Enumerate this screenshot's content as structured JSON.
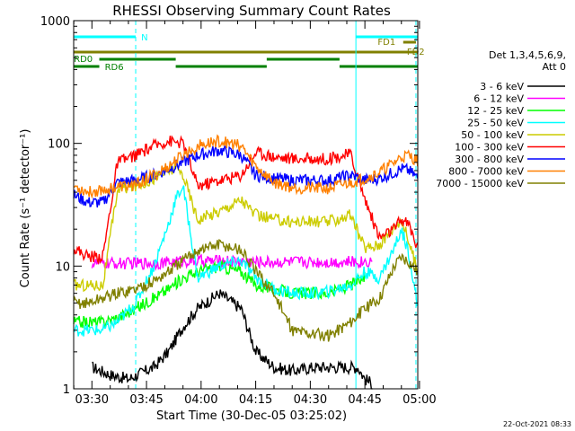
{
  "chart_data": {
    "type": "line",
    "title": "RHESSI Observing Summary Count Rates",
    "xlabel": "Start Time (30-Dec-05 03:25:02)",
    "ylabel": "Count Rate (s⁻¹ detector⁻¹)",
    "yscale": "log",
    "ylim": [
      1,
      1000
    ],
    "xlim_minutes": [
      -0.04,
      94.5
    ],
    "x_ticks": [
      {
        "label": "03:30",
        "minute": 4.97
      },
      {
        "label": "03:45",
        "minute": 19.97
      },
      {
        "label": "04:00",
        "minute": 34.97
      },
      {
        "label": "04:15",
        "minute": 49.97
      },
      {
        "label": "04:30",
        "minute": 64.97
      },
      {
        "label": "04:45",
        "minute": 79.97
      },
      {
        "label": "05:00",
        "minute": 94.97
      }
    ],
    "y_ticks": [
      {
        "label": "1",
        "value": 1
      },
      {
        "label": "10",
        "value": 10
      },
      {
        "label": "100",
        "value": 100
      },
      {
        "label": "1000",
        "value": 1000
      }
    ],
    "legend_header": [
      "Det 1,3,4,5,6,9,",
      "Att 0"
    ],
    "series": [
      {
        "name": "3 - 6 keV",
        "color": "#000000",
        "x": [
          5,
          10,
          15,
          22,
          26,
          30,
          34,
          40,
          46,
          50,
          55,
          60,
          66,
          70,
          78,
          80,
          82
        ],
        "y": [
          1.5,
          1.3,
          1.2,
          1.5,
          2.0,
          3.2,
          4.5,
          6.0,
          4.5,
          2.0,
          1.5,
          1.4,
          1.5,
          1.5,
          1.5,
          1.2,
          1.1
        ]
      },
      {
        "name": "6 - 12 keV",
        "color": "#ff00ff",
        "x": [
          5,
          10,
          15,
          22,
          26,
          30,
          34,
          40,
          46,
          50,
          55,
          60,
          66,
          70,
          78,
          80,
          82
        ],
        "y": [
          10.5,
          10.5,
          10.5,
          10.6,
          10.7,
          11.0,
          11.0,
          11.0,
          11.0,
          10.8,
          10.8,
          10.8,
          10.8,
          10.8,
          10.8,
          10.9,
          11.0
        ]
      },
      {
        "name": "12 - 25 keV",
        "color": "#00ff00",
        "x": [
          -0.1,
          4,
          8,
          12,
          17,
          22,
          26,
          30,
          34,
          40,
          46,
          50,
          55,
          60,
          66,
          70,
          76,
          80
        ],
        "y": [
          3.5,
          3.5,
          3.5,
          3.8,
          4.5,
          5.5,
          6.5,
          8.0,
          9.0,
          10.0,
          9.0,
          7.0,
          6.5,
          6.0,
          6.0,
          6.0,
          7.0,
          8.0
        ]
      },
      {
        "name": "25 - 50 keV",
        "color": "#00ffff",
        "x": [
          -0.1,
          4,
          8,
          12,
          17,
          22,
          26,
          28,
          30,
          34,
          40,
          46,
          50,
          55,
          60,
          66,
          70,
          76,
          80,
          84,
          88,
          90,
          92,
          94.5
        ],
        "y": [
          3.0,
          3.0,
          3.0,
          3.5,
          5.0,
          10.0,
          22.0,
          35.0,
          45.0,
          8.0,
          10.0,
          11.0,
          8.0,
          6.5,
          6.0,
          6.0,
          6.2,
          7.0,
          9.0,
          8.0,
          14.0,
          20.0,
          13.0,
          4.5
        ]
      },
      {
        "name": "50 - 100 keV",
        "color": "#cccc00",
        "x": [
          -0.1,
          4,
          8,
          12,
          17,
          22,
          26,
          28,
          30,
          34,
          40,
          46,
          50,
          55,
          60,
          66,
          70,
          76,
          80,
          84,
          88,
          90,
          92,
          94.5
        ],
        "y": [
          7.0,
          7.0,
          7.0,
          42.0,
          45.0,
          52.0,
          60.0,
          62.0,
          56.0,
          24.0,
          28.0,
          35.0,
          26.0,
          24.0,
          23.0,
          23.0,
          23.0,
          26.0,
          14.0,
          15.0,
          21.0,
          24.0,
          16.0,
          9.0
        ]
      },
      {
        "name": "100 - 300 keV",
        "color": "#ff0000",
        "x": [
          -0.1,
          4,
          8,
          12,
          17,
          22,
          26,
          30,
          34,
          40,
          46,
          50,
          55,
          60,
          66,
          70,
          76,
          80,
          84,
          88,
          90,
          92,
          94.5
        ],
        "y": [
          14.0,
          12.0,
          12.0,
          70.0,
          80.0,
          95.0,
          105.0,
          100.0,
          45.0,
          50.0,
          55.0,
          85.0,
          78.0,
          75.0,
          75.0,
          75.0,
          82.0,
          35.0,
          17.0,
          20.0,
          24.0,
          22.0,
          14.0
        ]
      },
      {
        "name": "300 - 800 keV",
        "color": "#0000ff",
        "x": [
          -0.1,
          4,
          8,
          12,
          17,
          22,
          26,
          30,
          34,
          40,
          46,
          50,
          55,
          60,
          66,
          70,
          76,
          80,
          84,
          88,
          90,
          92,
          94.5
        ],
        "y": [
          38.0,
          33.0,
          33.0,
          48.0,
          50.0,
          55.0,
          62.0,
          70.0,
          80.0,
          88.0,
          80.0,
          55.0,
          52.0,
          50.0,
          50.0,
          50.0,
          55.0,
          50.0,
          52.0,
          58.0,
          62.0,
          60.0,
          52.0
        ]
      },
      {
        "name": "800 - 7000 keV",
        "color": "#ff8000",
        "x": [
          -0.1,
          4,
          8,
          12,
          17,
          22,
          26,
          30,
          34,
          40,
          46,
          50,
          55,
          60,
          66,
          70,
          76,
          80,
          84,
          88,
          90,
          92,
          94.5
        ],
        "y": [
          45.0,
          40.0,
          42.0,
          44.0,
          46.0,
          55.0,
          65.0,
          80.0,
          95.0,
          105.0,
          95.0,
          65.0,
          48.0,
          44.0,
          43.0,
          43.0,
          48.0,
          52.0,
          58.0,
          70.0,
          78.0,
          80.0,
          72.0
        ]
      },
      {
        "name": "7000 - 15000 keV",
        "color": "#808000",
        "x": [
          -0.1,
          4,
          8,
          12,
          17,
          22,
          26,
          30,
          34,
          40,
          46,
          50,
          55,
          60,
          66,
          70,
          76,
          80,
          84,
          88,
          90,
          92,
          94.5
        ],
        "y": [
          5.0,
          5.0,
          5.5,
          6.0,
          6.5,
          7.5,
          9.0,
          11.0,
          13.5,
          15.0,
          13.5,
          9.0,
          6.0,
          3.0,
          2.8,
          2.7,
          3.5,
          4.5,
          5.5,
          10.0,
          12.0,
          11.0,
          9.0
        ]
      }
    ],
    "flags": [
      {
        "name": "N",
        "color": "#00ffff",
        "level": 0,
        "segments": [
          [
            -0.1,
            17
          ],
          [
            77.5,
            94.5
          ]
        ],
        "label_at": 18.5
      },
      {
        "name": "FD1",
        "color": "#808000",
        "level": 1,
        "segments": [
          [
            90.5,
            94
          ]
        ],
        "label_at": 83.5
      },
      {
        "name": "FD2",
        "color": "#808000",
        "level": 2,
        "segments": [
          [
            -0.1,
            94.5
          ]
        ],
        "label_at": 91.5
      },
      {
        "name": "RD0",
        "color": "#008000",
        "level": 3,
        "segments": [
          [
            7,
            28
          ],
          [
            53,
            73
          ]
        ],
        "label_at": 0
      },
      {
        "name": "RD6",
        "color": "#008000",
        "level": 4,
        "segments": [
          [
            -0.1,
            7
          ],
          [
            28,
            53
          ],
          [
            73,
            94.5
          ]
        ],
        "label_at": 8.5
      }
    ],
    "vlines": [
      {
        "minute": 17.0,
        "color": "#00ffff",
        "dashed": true
      },
      {
        "minute": 77.5,
        "color": "#00ffff",
        "dashed": false
      },
      {
        "minute": 94.0,
        "color": "#00ffff",
        "dashed": true
      }
    ],
    "grid": false,
    "legend": "right"
  },
  "timestamp": "22-Oct-2021 08:33"
}
